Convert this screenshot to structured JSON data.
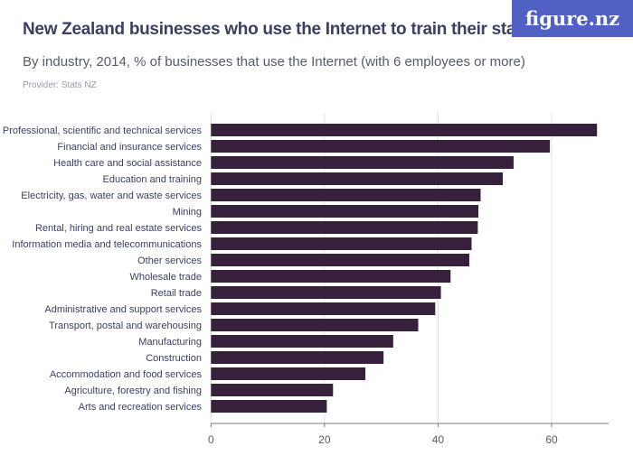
{
  "brand": {
    "logo_text": "figure.nz",
    "logo_color": "#5060c3"
  },
  "chart_data": {
    "type": "bar",
    "orientation": "horizontal",
    "title": "New Zealand businesses who use the Internet to train their staff",
    "subtitle": "By industry, 2014, % of businesses that use the Internet (with 6 employees or more)",
    "provider": "Provider: Stats NZ",
    "categories": [
      "Professional, scientific and technical services",
      "Financial and insurance services",
      "Health care and social assistance",
      "Education and training",
      "Electricity, gas, water and waste services",
      "Mining",
      "Rental, hiring and real estate services",
      "Information media and telecommunications",
      "Other services",
      "Wholesale trade",
      "Retail trade",
      "Administrative and support services",
      "Transport, postal and warehousing",
      "Manufacturing",
      "Construction",
      "Accommodation and food services",
      "Agriculture, forestry and fishing",
      "Arts and recreation services"
    ],
    "values": [
      68.0,
      59.7,
      53.3,
      51.4,
      47.5,
      47.1,
      47.0,
      45.9,
      45.5,
      42.2,
      40.5,
      39.5,
      36.5,
      32.1,
      30.4,
      27.2,
      21.5,
      20.4
    ],
    "xlim": [
      0,
      70
    ],
    "xticks": [
      "0",
      "20",
      "40",
      "60"
    ],
    "grid": true,
    "bar_color": "#36203b",
    "xlabel": "",
    "ylabel": ""
  }
}
